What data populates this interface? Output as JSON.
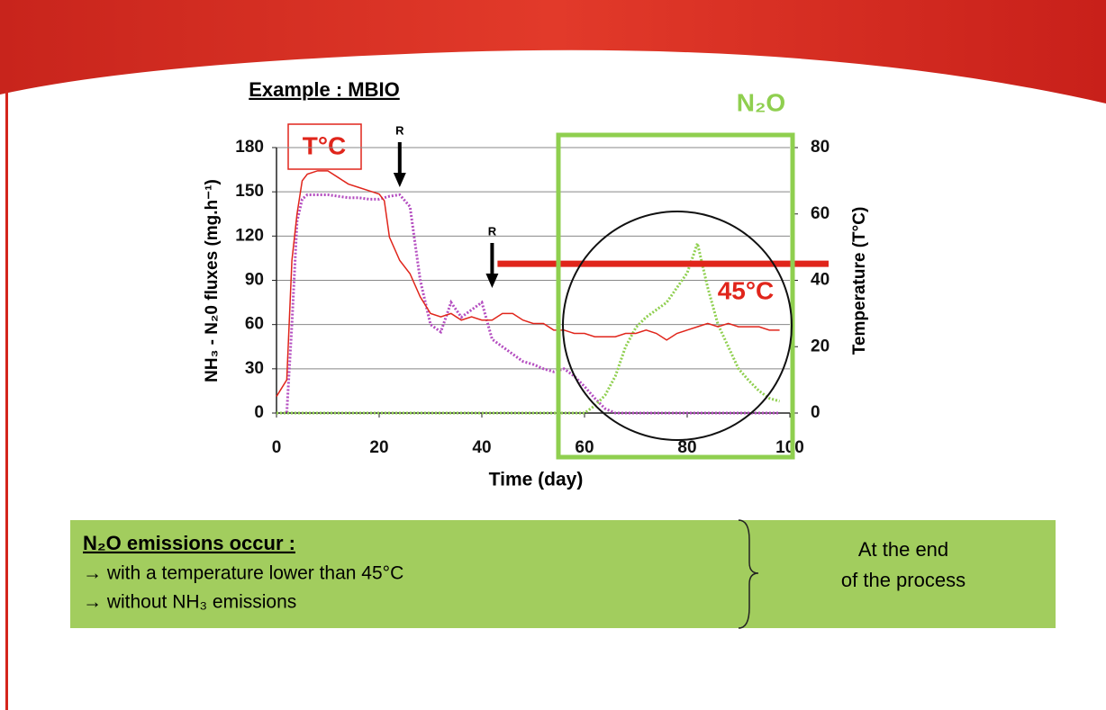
{
  "chart_data": {
    "type": "line",
    "title": "Example : MBIO",
    "x_label": "Time (day)",
    "y_label": "NH₃ - N₂0 fluxes (mg.h⁻¹)",
    "y2_label": "Temperature (T°C)",
    "x": [
      0,
      2,
      3,
      4,
      5,
      6,
      8,
      10,
      12,
      14,
      16,
      18,
      20,
      21,
      22,
      24,
      26,
      28,
      30,
      32,
      34,
      36,
      38,
      40,
      42,
      44,
      46,
      48,
      50,
      52,
      54,
      56,
      58,
      60,
      62,
      64,
      66,
      68,
      70,
      72,
      74,
      76,
      78,
      80,
      82,
      84,
      86,
      88,
      90,
      92,
      94,
      96,
      98
    ],
    "series": [
      {
        "color": "#b44dc0",
        "values": [
          0,
          0,
          60,
          130,
          145,
          148,
          148,
          148,
          147,
          146,
          146,
          145,
          145,
          146,
          147,
          148,
          140,
          90,
          60,
          55,
          75,
          65,
          70,
          75,
          50,
          45,
          40,
          35,
          33,
          30,
          28,
          30,
          25,
          18,
          10,
          3,
          0,
          0,
          0,
          0,
          0,
          0,
          0,
          0,
          0,
          0,
          0,
          0,
          0,
          0,
          0,
          0,
          0
        ]
      },
      {
        "color": "#8fcf4f",
        "values": [
          0,
          0,
          0,
          0,
          0,
          0,
          0,
          0,
          0,
          0,
          0,
          0,
          0,
          0,
          0,
          0,
          0,
          0,
          0,
          0,
          0,
          0,
          0,
          0,
          0,
          0,
          0,
          0,
          0,
          0,
          0,
          0,
          0,
          0,
          5,
          12,
          25,
          45,
          58,
          65,
          70,
          75,
          85,
          95,
          115,
          85,
          60,
          45,
          30,
          22,
          15,
          10,
          8
        ]
      },
      {
        "color": "#e0251b",
        "axis": "y2",
        "values": [
          5,
          10,
          46,
          60,
          70,
          72,
          73,
          73,
          71,
          69,
          68,
          67,
          66,
          64,
          53,
          46,
          42,
          35,
          30,
          29,
          30,
          28,
          29,
          28,
          28,
          30,
          30,
          28,
          27,
          27,
          25,
          25,
          24,
          24,
          23,
          23,
          23,
          24,
          24,
          25,
          24,
          22,
          24,
          25,
          26,
          27,
          26,
          27,
          26,
          26,
          26,
          25,
          25
        ]
      }
    ],
    "xlim": [
      0,
      100
    ],
    "xticks": [
      0,
      20,
      40,
      60,
      80,
      100
    ],
    "ylim": [
      0,
      180
    ],
    "yticks": [
      0,
      30,
      60,
      90,
      120,
      150,
      180
    ],
    "y2lim": [
      0,
      80
    ],
    "y2ticks": [
      0,
      20,
      40,
      60,
      80
    ],
    "grid": true,
    "annotations": {
      "temp_tag": "T°C",
      "n2o_tag": "N₂O"
    },
    "turnings": [
      {
        "x": 24,
        "label": "R"
      },
      {
        "x": 42,
        "label": "R"
      }
    ],
    "threshold": {
      "value": 45,
      "label": "45°C"
    }
  },
  "summary": {
    "heading": "N₂O emissions occur :",
    "lines": [
      "→ with a temperature lower than 45°C",
      "→ without NH₃ emissions"
    ],
    "conclusion": [
      "At the end",
      "of the process"
    ]
  }
}
